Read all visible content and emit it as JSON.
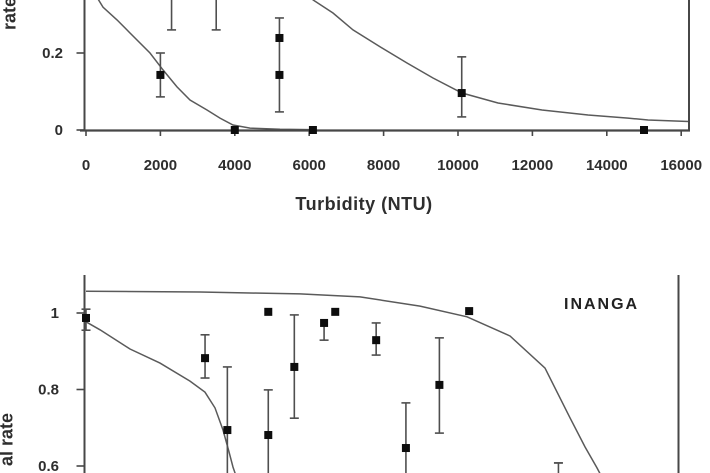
{
  "figure": {
    "note": "cropped two-panel dose-response figure, black points with error bars and fitted curves"
  },
  "chart_data": [
    {
      "id": "top-panel",
      "type": "scatter",
      "title": "",
      "xlabel": "Turbidity (NTU)",
      "ylabel_visible_fragment": "rate",
      "xlim": [
        0,
        16000
      ],
      "ylim_visible": [
        0,
        0.345
      ],
      "x_ticks": [
        0,
        2000,
        4000,
        6000,
        8000,
        10000,
        12000,
        14000,
        16000
      ],
      "x_tick_labels": [
        "0",
        "2000",
        "4000",
        "6000",
        "8000",
        "10000",
        "12000",
        "14000",
        "16000"
      ],
      "y_ticks": [
        {
          "v": 0.2,
          "label": "0.2"
        },
        {
          "v": 0.0,
          "label": "0"
        }
      ],
      "grid": false,
      "legend": "none",
      "points": [
        {
          "x": 2000,
          "y": 0.143,
          "err_lo": 0.086,
          "err_hi": 0.2
        },
        {
          "x": 4000,
          "y": 0.0
        },
        {
          "x": 5200,
          "y": 0.239,
          "err_lo": 0.047,
          "err_hi": 0.291
        },
        {
          "x": 5200,
          "y": 0.143
        },
        {
          "x": 6100,
          "y": 0.0
        },
        {
          "x": 10100,
          "y": 0.096,
          "err_lo": 0.034,
          "err_hi": 0.19
        },
        {
          "x": 15000,
          "y": 0.0
        }
      ],
      "clipped_error_bars": [
        {
          "x": 2300,
          "cap_y": 0.26
        },
        {
          "x": 3500,
          "cap_y": 0.26
        }
      ],
      "curves": [
        {
          "name": "fit-curve-1",
          "points": [
            [
              260,
              0.35
            ],
            [
              457,
              0.319
            ],
            [
              833,
              0.286
            ],
            [
              1183,
              0.252
            ],
            [
              1720,
              0.2
            ],
            [
              2070,
              0.156
            ],
            [
              2446,
              0.112
            ],
            [
              2796,
              0.078
            ],
            [
              3253,
              0.052
            ],
            [
              3602,
              0.031
            ],
            [
              3952,
              0.013
            ],
            [
              4409,
              0.005
            ],
            [
              5215,
              0.002
            ],
            [
              6000,
              0.001
            ]
          ]
        },
        {
          "name": "fit-curve-2",
          "points": [
            [
              6050,
              0.35
            ],
            [
              6102,
              0.338
            ],
            [
              6640,
              0.304
            ],
            [
              7177,
              0.26
            ],
            [
              7903,
              0.216
            ],
            [
              8629,
              0.174
            ],
            [
              9328,
              0.135
            ],
            [
              10108,
              0.096
            ],
            [
              11075,
              0.07
            ],
            [
              12258,
              0.052
            ],
            [
              13495,
              0.039
            ],
            [
              14570,
              0.031
            ],
            [
              15108,
              0.026
            ],
            [
              16200,
              0.022
            ]
          ]
        }
      ]
    },
    {
      "id": "bottom-panel",
      "type": "scatter",
      "label": "INANGA",
      "ylabel_visible_fragment": "al rate",
      "xlim": [
        0,
        16000
      ],
      "ylim_visible": [
        0.58,
        1.06
      ],
      "y_ticks": [
        {
          "v": 1.0,
          "label": "1"
        },
        {
          "v": 0.8,
          "label": "0.8"
        },
        {
          "v": 0.6,
          "label": "0.6"
        }
      ],
      "grid": false,
      "legend": "none",
      "points": [
        {
          "x": 0,
          "y": 0.987,
          "err_lo": 0.955,
          "err_hi": 1.01
        },
        {
          "x": 3200,
          "y": 0.882,
          "err_lo": 0.83,
          "err_hi": 0.943
        },
        {
          "x": 3800,
          "y": 0.694,
          "err_hi": 0.859,
          "err_lo_clipped": true
        },
        {
          "x": 4900,
          "y": 1.003
        },
        {
          "x": 4900,
          "y": 0.681,
          "err_hi": 0.799,
          "err_lo_clipped": true
        },
        {
          "x": 5600,
          "y": 0.859,
          "err_lo": 0.725,
          "err_hi": 0.995
        },
        {
          "x": 6400,
          "y": 0.974,
          "err_lo": 0.929
        },
        {
          "x": 6700,
          "y": 1.003
        },
        {
          "x": 7800,
          "y": 0.929,
          "err_lo": 0.89,
          "err_hi": 0.974
        },
        {
          "x": 8600,
          "y": 0.647,
          "err_hi": 0.765,
          "err_lo_clipped": true
        },
        {
          "x": 9500,
          "y": 0.812,
          "err_lo": 0.686,
          "err_hi": 0.935
        },
        {
          "x": 10300,
          "y": 1.005
        },
        {
          "x": 12700,
          "y": 0.608,
          "marker": "cap",
          "err_lo_clipped": true
        }
      ],
      "curves": [
        {
          "name": "fit-curve-1",
          "points": [
            [
              0,
              0.977
            ],
            [
              376,
              0.956
            ],
            [
              1183,
              0.906
            ],
            [
              1989,
              0.869
            ],
            [
              2796,
              0.822
            ],
            [
              3199,
              0.793
            ],
            [
              3468,
              0.752
            ],
            [
              3683,
              0.694
            ],
            [
              3844,
              0.637
            ],
            [
              3952,
              0.597
            ],
            [
              4040,
              0.572
            ]
          ]
        },
        {
          "name": "fit-curve-2",
          "points": [
            [
              0,
              1.057
            ],
            [
              3065,
              1.055
            ],
            [
              5753,
              1.05
            ],
            [
              7366,
              1.042
            ],
            [
              8979,
              1.018
            ],
            [
              10242,
              0.99
            ],
            [
              11398,
              0.94
            ],
            [
              12339,
              0.856
            ],
            [
              13011,
              0.726
            ],
            [
              13414,
              0.65
            ],
            [
              13737,
              0.595
            ],
            [
              13900,
              0.565
            ]
          ]
        }
      ]
    }
  ]
}
